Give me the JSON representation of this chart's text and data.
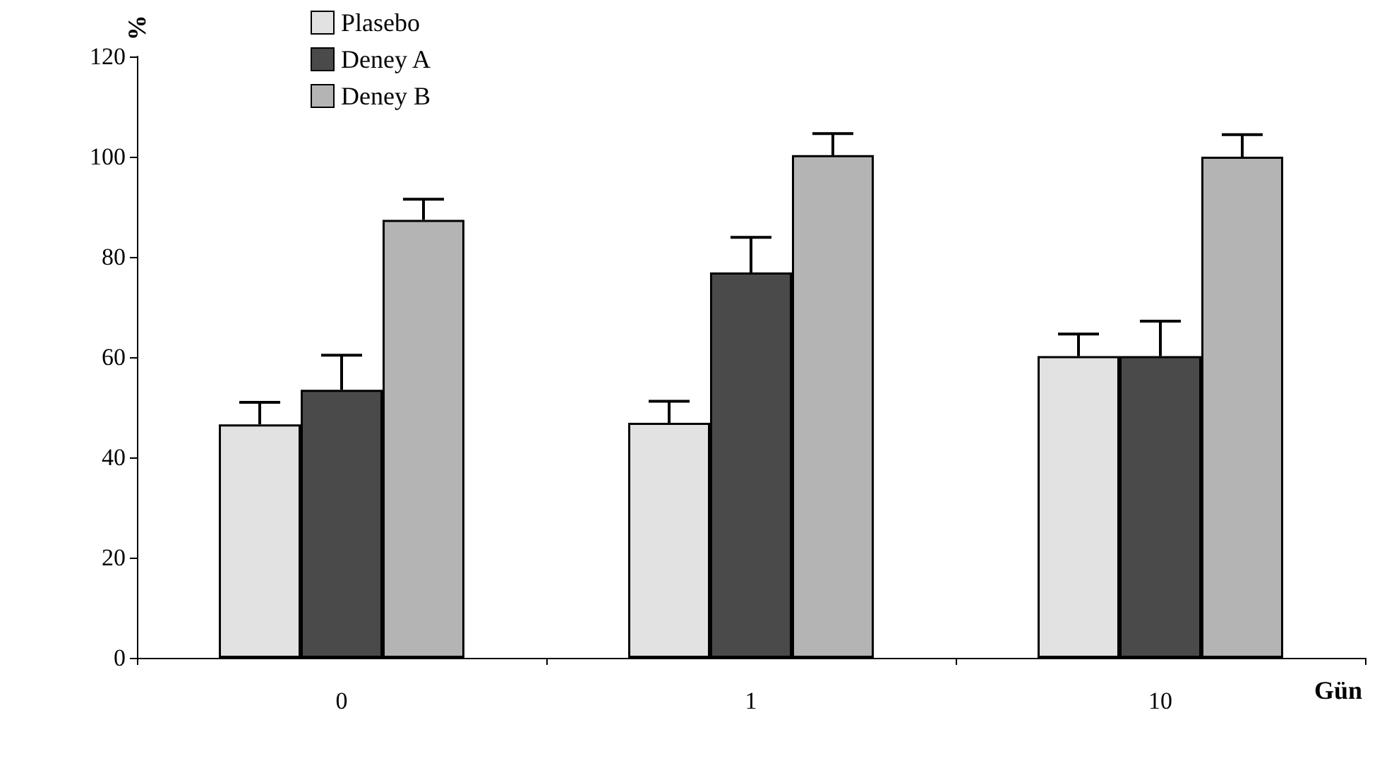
{
  "chart_data": {
    "type": "bar",
    "ylabel": "%",
    "xlabel": "Gün",
    "categories": [
      "0",
      "1",
      "10"
    ],
    "series": [
      {
        "name": "Plasebo",
        "color": "#e2e2e2",
        "values": [
          46.6,
          46.9,
          60.2
        ],
        "errors": [
          [
            46.6,
            51
          ],
          [
            46.9,
            51.2
          ],
          [
            60.2,
            64.6
          ]
        ]
      },
      {
        "name": "Deney A",
        "color": "#4a4a4a",
        "values": [
          53.5,
          76.9,
          60.2
        ],
        "errors": [
          [
            53.5,
            60.4
          ],
          [
            76.9,
            83.9
          ],
          [
            60.2,
            67.2
          ]
        ]
      },
      {
        "name": "Deney B",
        "color": "#b4b4b4",
        "values": [
          87.4,
          100.3,
          100
        ],
        "errors": [
          [
            87.4,
            91.5
          ],
          [
            100.3,
            104.6
          ],
          [
            100,
            104.4
          ]
        ]
      }
    ],
    "ylim": [
      0,
      120
    ],
    "yticks": [
      0,
      20,
      40,
      60,
      80,
      100,
      120
    ],
    "grid": false,
    "legend": "top left"
  }
}
